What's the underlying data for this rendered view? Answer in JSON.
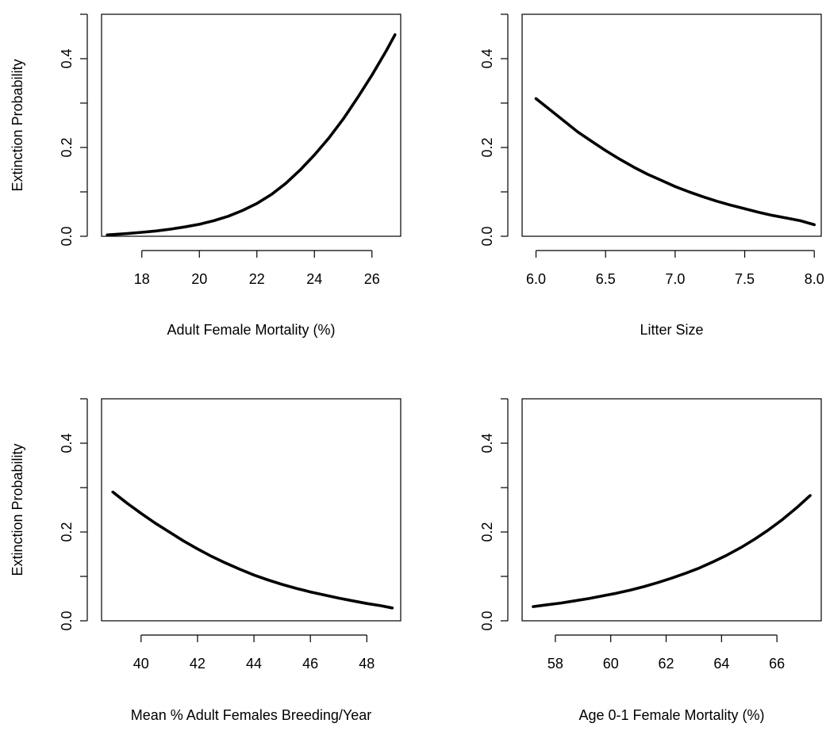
{
  "chart_data": [
    {
      "type": "line",
      "title": "",
      "xlabel": "Adult Female Mortality (%)",
      "ylabel": "Extinction Probability",
      "xlim": [
        16.6,
        27.0
      ],
      "ylim": [
        0,
        0.5
      ],
      "xticks": [
        18,
        20,
        22,
        24,
        26
      ],
      "xtick_labels": [
        "18",
        "20",
        "22",
        "24",
        "26"
      ],
      "yticks": [
        0.0,
        0.1,
        0.2,
        0.3,
        0.4,
        0.5
      ],
      "ytick_labels": [
        "0.0",
        "",
        "0.2",
        "",
        "0.4",
        ""
      ],
      "grid": false,
      "series": [
        {
          "x": [
            16.8,
            17.5,
            18.0,
            18.5,
            19.0,
            19.5,
            20.0,
            20.5,
            21.0,
            21.5,
            22.0,
            22.5,
            23.0,
            23.5,
            24.0,
            24.5,
            25.0,
            25.5,
            26.0,
            26.5,
            26.8
          ],
          "y": [
            0.003,
            0.006,
            0.009,
            0.012,
            0.016,
            0.021,
            0.027,
            0.035,
            0.045,
            0.058,
            0.074,
            0.094,
            0.119,
            0.149,
            0.183,
            0.221,
            0.264,
            0.312,
            0.363,
            0.418,
            0.454
          ]
        }
      ]
    },
    {
      "type": "line",
      "title": "",
      "xlabel": "Litter Size",
      "ylabel": "",
      "xlim": [
        5.9,
        8.05
      ],
      "ylim": [
        0,
        0.5
      ],
      "xticks": [
        6.0,
        6.5,
        7.0,
        7.5,
        8.0
      ],
      "xtick_labels": [
        "6.0",
        "6.5",
        "7.0",
        "7.5",
        "8.0"
      ],
      "yticks": [
        0.0,
        0.1,
        0.2,
        0.3,
        0.4,
        0.5
      ],
      "ytick_labels": [
        "0.0",
        "",
        "0.2",
        "",
        "0.4",
        ""
      ],
      "grid": false,
      "series": [
        {
          "x": [
            6.0,
            6.1,
            6.2,
            6.3,
            6.4,
            6.5,
            6.6,
            6.7,
            6.8,
            6.9,
            7.0,
            7.1,
            7.2,
            7.3,
            7.4,
            7.5,
            7.6,
            7.7,
            7.8,
            7.9,
            8.0
          ],
          "y": [
            0.31,
            0.285,
            0.26,
            0.235,
            0.214,
            0.193,
            0.174,
            0.156,
            0.14,
            0.126,
            0.112,
            0.1,
            0.089,
            0.079,
            0.07,
            0.062,
            0.054,
            0.047,
            0.041,
            0.035,
            0.026
          ]
        }
      ]
    },
    {
      "type": "line",
      "title": "",
      "xlabel": "Mean % Adult Females Breeding/Year",
      "ylabel": "Extinction Probability",
      "xlim": [
        38.6,
        49.2
      ],
      "ylim": [
        0,
        0.5
      ],
      "xticks": [
        40,
        42,
        44,
        46,
        48
      ],
      "xtick_labels": [
        "40",
        "42",
        "44",
        "46",
        "48"
      ],
      "yticks": [
        0.0,
        0.1,
        0.2,
        0.3,
        0.4,
        0.5
      ],
      "ytick_labels": [
        "0.0",
        "",
        "0.2",
        "",
        "0.4",
        ""
      ],
      "grid": false,
      "series": [
        {
          "x": [
            39.0,
            39.5,
            40.0,
            40.5,
            41.0,
            41.5,
            42.0,
            42.5,
            43.0,
            43.5,
            44.0,
            44.5,
            45.0,
            45.5,
            46.0,
            46.5,
            47.0,
            47.5,
            48.0,
            48.5,
            48.9
          ],
          "y": [
            0.29,
            0.265,
            0.242,
            0.22,
            0.2,
            0.18,
            0.162,
            0.145,
            0.13,
            0.116,
            0.103,
            0.092,
            0.082,
            0.073,
            0.065,
            0.058,
            0.051,
            0.045,
            0.039,
            0.034,
            0.029
          ]
        }
      ]
    },
    {
      "type": "line",
      "title": "",
      "xlabel": "Age 0-1 Female Mortality (%)",
      "ylabel": "",
      "xlim": [
        56.8,
        67.6
      ],
      "ylim": [
        0,
        0.5
      ],
      "xticks": [
        58,
        60,
        62,
        64,
        66
      ],
      "xtick_labels": [
        "58",
        "60",
        "62",
        "64",
        "66"
      ],
      "yticks": [
        0.0,
        0.1,
        0.2,
        0.3,
        0.4,
        0.5
      ],
      "ytick_labels": [
        "0.0",
        "",
        "0.2",
        "",
        "0.4",
        ""
      ],
      "grid": false,
      "series": [
        {
          "x": [
            57.2,
            57.7,
            58.2,
            58.7,
            59.2,
            59.7,
            60.2,
            60.7,
            61.2,
            61.7,
            62.2,
            62.7,
            63.2,
            63.7,
            64.2,
            64.7,
            65.2,
            65.7,
            66.2,
            66.7,
            67.2
          ],
          "y": [
            0.032,
            0.036,
            0.04,
            0.045,
            0.05,
            0.056,
            0.062,
            0.069,
            0.077,
            0.086,
            0.096,
            0.107,
            0.119,
            0.133,
            0.148,
            0.165,
            0.184,
            0.205,
            0.228,
            0.254,
            0.282
          ]
        }
      ]
    }
  ]
}
